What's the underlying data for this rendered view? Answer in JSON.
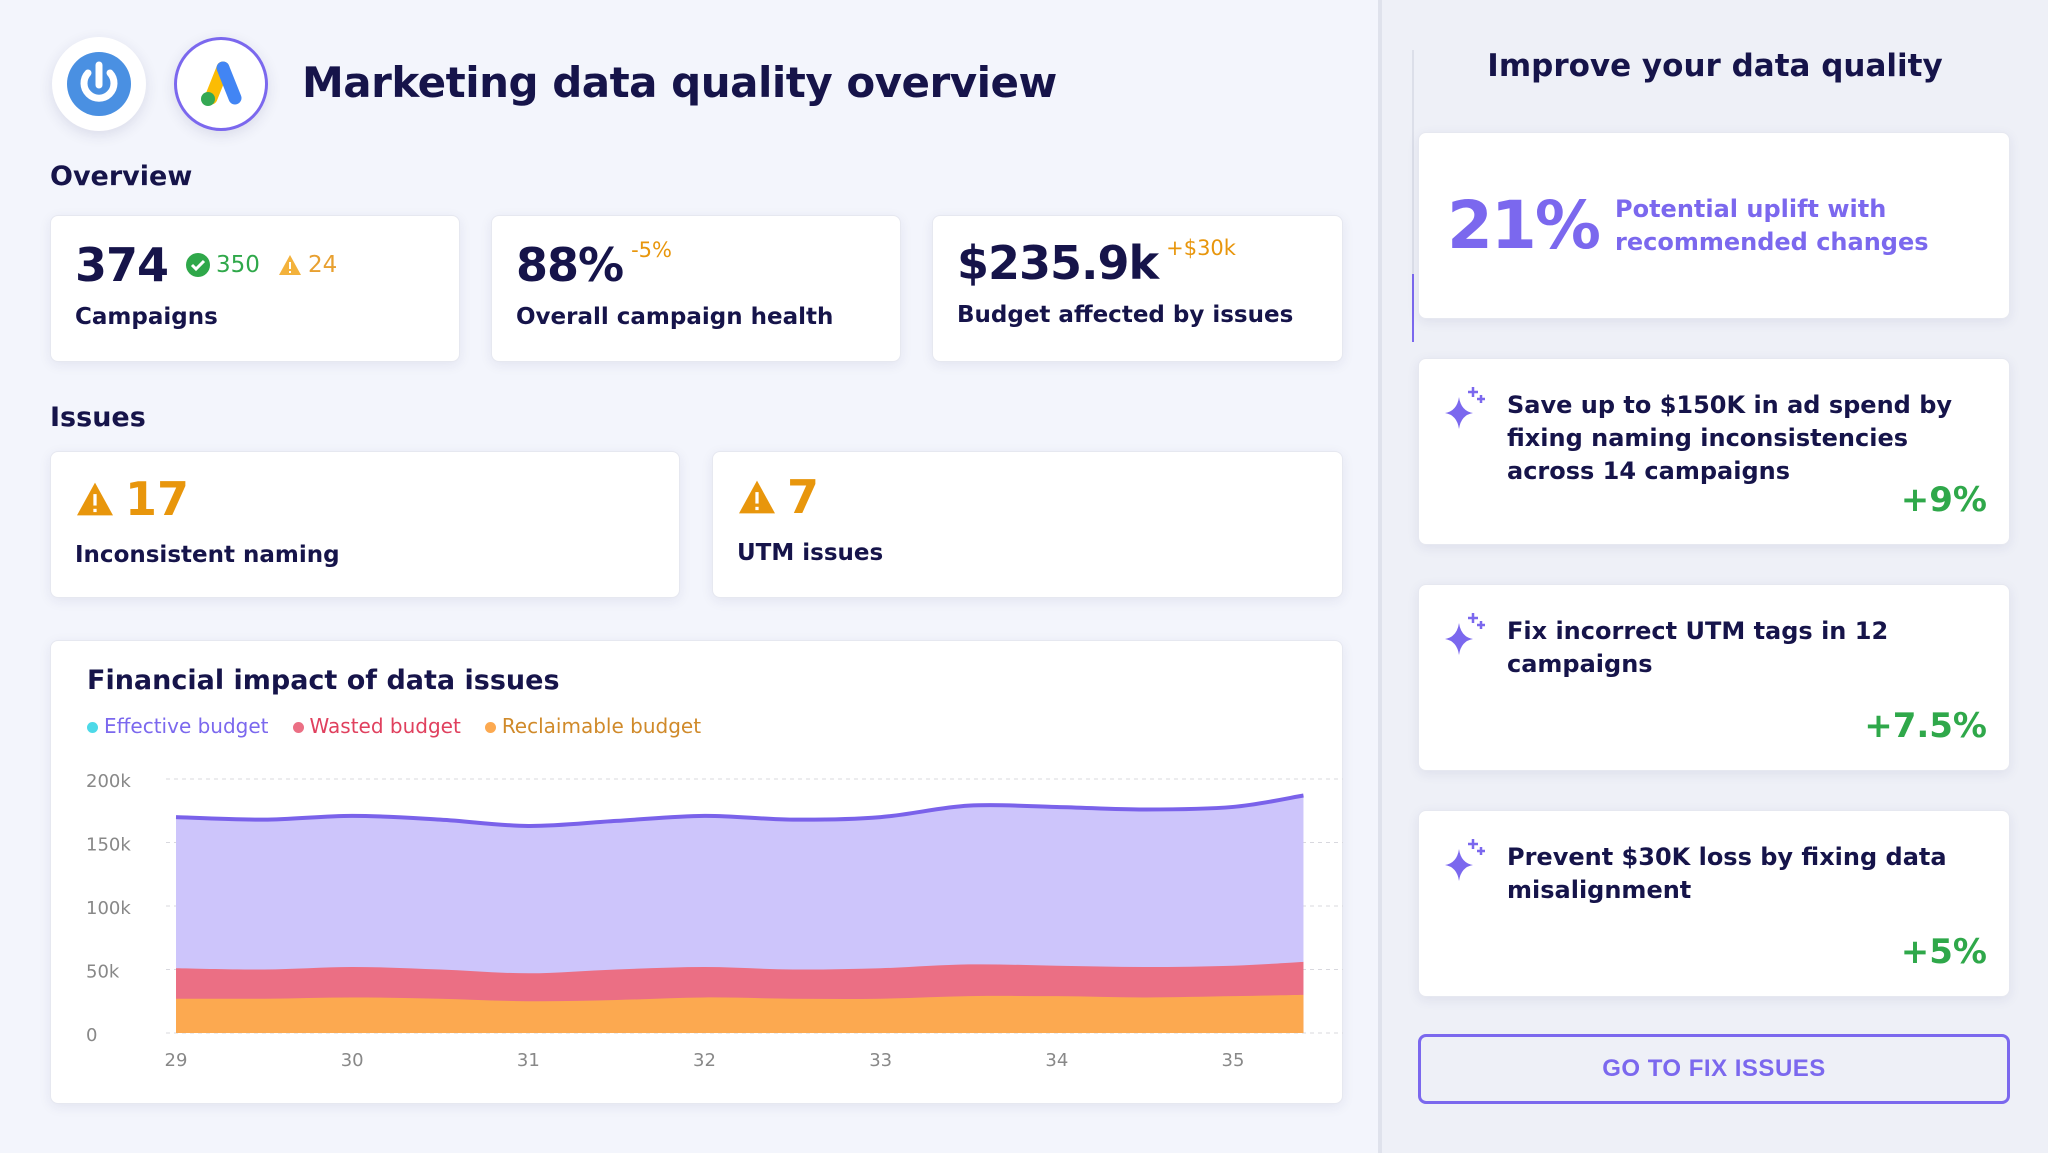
{
  "header": {
    "title": "Marketing data quality overview",
    "logos": [
      "power-logo",
      "google-ads-logo"
    ]
  },
  "overview": {
    "heading": "Overview",
    "campaigns": {
      "value": "374",
      "ok": "350",
      "warn": "24",
      "label": "Campaigns"
    },
    "health": {
      "value": "88%",
      "delta": "-5%",
      "label": "Overall campaign health"
    },
    "budget": {
      "value": "$235.9k",
      "delta": "+$30k",
      "label": "Budget affected by issues"
    }
  },
  "issues": {
    "heading": "Issues",
    "items": [
      {
        "count": "17",
        "label": "Inconsistent naming"
      },
      {
        "count": "7",
        "label": "UTM issues"
      }
    ]
  },
  "chart_data": {
    "type": "area",
    "stacked": true,
    "title": "Financial impact of data issues",
    "x": [
      29,
      29.5,
      30,
      30.5,
      31,
      31.5,
      32,
      32.5,
      33,
      33.5,
      34,
      34.5,
      35,
      35.4
    ],
    "x_ticks": [
      "29",
      "30",
      "31",
      "32",
      "33",
      "34",
      "35"
    ],
    "y_ticks": [
      "0",
      "50k",
      "100k",
      "150k",
      "200k"
    ],
    "ylim": [
      0,
      200000
    ],
    "grid": true,
    "legend_placement": "top-left",
    "series": [
      {
        "name": "Reclaimable budget",
        "color": "#fca950",
        "values": [
          27000,
          27000,
          28000,
          27000,
          25000,
          26000,
          28000,
          27000,
          27000,
          29000,
          29000,
          28000,
          29000,
          30000
        ]
      },
      {
        "name": "Wasted budget",
        "color": "#eb6f84",
        "values": [
          24000,
          23000,
          24000,
          23000,
          22000,
          24000,
          24000,
          23000,
          24000,
          25000,
          24000,
          24000,
          24000,
          26000
        ]
      },
      {
        "name": "Effective budget",
        "color": "#cdc5fb",
        "line_color": "#7a62ea",
        "values": [
          119000,
          118000,
          119000,
          118000,
          116000,
          117000,
          119000,
          118000,
          119000,
          125000,
          125000,
          124000,
          125000,
          131000
        ]
      }
    ],
    "legend": [
      {
        "name": "Effective budget",
        "dot": "#4dd9e8",
        "text": "#7b68ee"
      },
      {
        "name": "Wasted budget",
        "dot": "#eb6f84",
        "text": "#e0405e"
      },
      {
        "name": "Reclaimable budget",
        "dot": "#fca950",
        "text": "#d08a2a"
      }
    ]
  },
  "improve": {
    "title": "Improve your data quality",
    "uplift": {
      "value": "21%",
      "text": "Potential uplift with recommended changes"
    },
    "recommendations": [
      {
        "text": "Save up to $150K in ad spend by fixing naming inconsistencies across 14 campaigns",
        "impact": "+9%"
      },
      {
        "text": "Fix incorrect UTM tags in 12 campaigns",
        "impact": "+7.5%"
      },
      {
        "text": "Prevent $30K loss by fixing data misalignment",
        "impact": "+5%"
      }
    ],
    "cta": "GO TO FIX ISSUES"
  },
  "colors": {
    "navy": "#16144a",
    "accent": "#7b68ee",
    "warning": "#e8960c",
    "success": "#2fa84a"
  }
}
